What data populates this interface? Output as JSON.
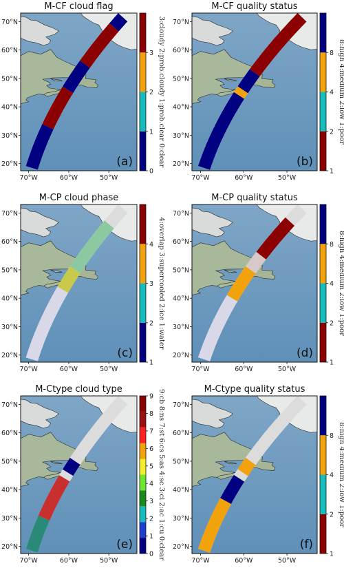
{
  "chart_data": [
    {
      "type": "map",
      "title": "M-CF cloud flag",
      "panel_label": "(a)",
      "x_ticks": [
        "70°W",
        "60°W",
        "50°W"
      ],
      "y_ticks": [
        "70°N",
        "60°N",
        "50°N",
        "40°N",
        "30°N",
        "20°N"
      ],
      "colorbar": {
        "ticks": [
          "0",
          "1",
          "2",
          "3"
        ],
        "label": "3:cloudy 2:prob.cloudy 1:prob.clear 0:clear",
        "colors": [
          "#000080",
          "#17bcbc",
          "#f2a20c",
          "#8b0000"
        ]
      },
      "track_segments": [
        {
          "from_lat": 18.5,
          "to_lat": 33,
          "color": "#000080"
        },
        {
          "from_lat": 33,
          "to_lat": 46,
          "color": "#8b0000"
        },
        {
          "from_lat": 46,
          "to_lat": 55,
          "color": "#000080"
        },
        {
          "from_lat": 55,
          "to_lat": 68,
          "color": "#8b0000"
        },
        {
          "from_lat": 68,
          "to_lat": 71.5,
          "color": "#000080"
        }
      ]
    },
    {
      "type": "map",
      "title": "M-CF quality status",
      "panel_label": "(b)",
      "x_ticks": [
        "70°W",
        "60°W",
        "50°W"
      ],
      "y_ticks": [
        "70°N",
        "60°N",
        "50°N",
        "40°N",
        "30°N",
        "20°N"
      ],
      "colorbar": {
        "ticks": [
          "1",
          "2",
          "4",
          "8"
        ],
        "label": "8:high 4:medium 2:low 1:poor",
        "colors": [
          "#8b0000",
          "#17bcbc",
          "#f2a20c",
          "#000080"
        ]
      },
      "track_segments": [
        {
          "from_lat": 18.5,
          "to_lat": 44,
          "color": "#000080"
        },
        {
          "from_lat": 44,
          "to_lat": 46,
          "color": "#f2a20c"
        },
        {
          "from_lat": 46,
          "to_lat": 52,
          "color": "#000080"
        },
        {
          "from_lat": 52,
          "to_lat": 71.5,
          "color": "#8b0000"
        }
      ]
    },
    {
      "type": "map",
      "title": "M-CP cloud phase",
      "panel_label": "(c)",
      "x_ticks": [
        "70°W",
        "60°W",
        "50°W"
      ],
      "y_ticks": [
        "70°N",
        "60°N",
        "50°N",
        "40°N",
        "30°N",
        "20°N"
      ],
      "colorbar": {
        "ticks": [
          "1",
          "2",
          "3",
          "4"
        ],
        "label": "4:overlap 3:supercooled 2:ice 1:water",
        "colors": [
          "#000080",
          "#17bcbc",
          "#f2a20c",
          "#8b0000"
        ]
      },
      "track_segments": [
        {
          "from_lat": 18.5,
          "to_lat": 43,
          "color": "#d8d8e8"
        },
        {
          "from_lat": 43,
          "to_lat": 50,
          "color": "#c9c94a"
        },
        {
          "from_lat": 50,
          "to_lat": 66,
          "color": "#8cc8a0"
        },
        {
          "from_lat": 66,
          "to_lat": 71.5,
          "color": "#dcdcdc"
        }
      ]
    },
    {
      "type": "map",
      "title": "M-CP quality status",
      "panel_label": "(d)",
      "x_ticks": [
        "70°W",
        "60°W",
        "50°W"
      ],
      "y_ticks": [
        "70°N",
        "60°N",
        "50°N",
        "40°N",
        "30°N",
        "20°N"
      ],
      "colorbar": {
        "ticks": [
          "1",
          "2",
          "4",
          "8"
        ],
        "label": "8:high 4:medium 2:low 1:poor",
        "colors": [
          "#8b0000",
          "#17bcbc",
          "#f2a20c",
          "#000080"
        ]
      },
      "track_segments": [
        {
          "from_lat": 18.5,
          "to_lat": 40,
          "color": "#d8d8e8"
        },
        {
          "from_lat": 40,
          "to_lat": 50,
          "color": "#f2a20c"
        },
        {
          "from_lat": 50,
          "to_lat": 55,
          "color": "#d8c8c8"
        },
        {
          "from_lat": 55,
          "to_lat": 67,
          "color": "#8b0000"
        },
        {
          "from_lat": 67,
          "to_lat": 71.5,
          "color": "#dcdcdc"
        }
      ]
    },
    {
      "type": "map",
      "title": "M-Ctype cloud type",
      "panel_label": "(e)",
      "x_ticks": [
        "70°W",
        "60°W",
        "50°W"
      ],
      "y_ticks": [
        "70°N",
        "60°N",
        "50°N",
        "40°N",
        "30°N",
        "20°N"
      ],
      "colorbar": {
        "ticks": [
          "0",
          "1",
          "2",
          "3",
          "4",
          "5",
          "6",
          "7",
          "8",
          "9"
        ],
        "label": "9:cb 8:ns 7:st 6:cs 5:as 4:sc 3:ci 2:ac 1:cu 0:clear",
        "colors": [
          "#000080",
          "#1f3fd0",
          "#17bcbc",
          "#1a8a1a",
          "#6ee82e",
          "#f5ee2a",
          "#f2a20c",
          "#ff2020",
          "#9b1010",
          "#8b0000"
        ]
      },
      "track_segments": [
        {
          "from_lat": 18.5,
          "to_lat": 30,
          "color": "#2a8a7a"
        },
        {
          "from_lat": 30,
          "to_lat": 44,
          "color": "#c83030"
        },
        {
          "from_lat": 44,
          "to_lat": 46,
          "color": "#dcdcdc"
        },
        {
          "from_lat": 46,
          "to_lat": 50,
          "color": "#000080"
        },
        {
          "from_lat": 50,
          "to_lat": 71.5,
          "color": "#dcdcdc"
        }
      ]
    },
    {
      "type": "map",
      "title": "M-Ctype quality status",
      "panel_label": "(f)",
      "x_ticks": [
        "70°W",
        "60°W",
        "50°W"
      ],
      "y_ticks": [
        "70°N",
        "60°N",
        "50°N",
        "40°N",
        "30°N",
        "20°N"
      ],
      "colorbar": {
        "ticks": [
          "1",
          "2",
          "4",
          "8"
        ],
        "label": "8:high 4:medium 2:low 1:poor",
        "colors": [
          "#8b0000",
          "#17bcbc",
          "#f2a20c",
          "#000080"
        ]
      },
      "track_segments": [
        {
          "from_lat": 18.5,
          "to_lat": 36,
          "color": "#f2a20c"
        },
        {
          "from_lat": 36,
          "to_lat": 44,
          "color": "#000080"
        },
        {
          "from_lat": 44,
          "to_lat": 46,
          "color": "#dcdcdc"
        },
        {
          "from_lat": 46,
          "to_lat": 50,
          "color": "#f2a20c"
        },
        {
          "from_lat": 50,
          "to_lat": 71.5,
          "color": "#dcdcdc"
        }
      ]
    }
  ]
}
